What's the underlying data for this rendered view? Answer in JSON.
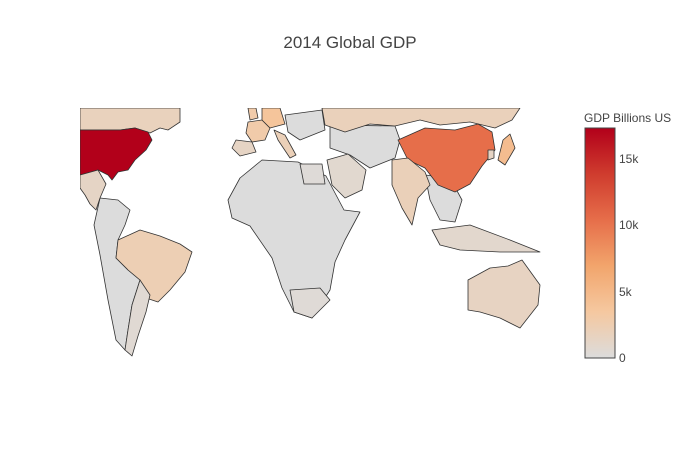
{
  "title": "2014 Global GDP",
  "colorbar": {
    "title": "GDP Billions US",
    "ticks": [
      "0",
      "5k",
      "10k",
      "15k"
    ],
    "tick_values": [
      0,
      5000,
      10000,
      15000
    ],
    "range": [
      0,
      17300
    ],
    "colors": [
      "#dcdcdc",
      "#f5c8a0",
      "#f2a56c",
      "#e66e4a",
      "#cf3c2e",
      "#b2001a"
    ]
  },
  "chart_data": {
    "type": "choropleth",
    "title": "2014 Global GDP",
    "colorbar_title": "GDP Billions US",
    "zrange": [
      0,
      17300
    ],
    "regions": [
      {
        "name": "United States",
        "value": 17300
      },
      {
        "name": "China",
        "value": 10400
      },
      {
        "name": "Japan",
        "value": 4600
      },
      {
        "name": "Germany",
        "value": 3800
      },
      {
        "name": "France",
        "value": 2900
      },
      {
        "name": "United Kingdom",
        "value": 2900
      },
      {
        "name": "Brazil",
        "value": 2300
      },
      {
        "name": "Italy",
        "value": 2100
      },
      {
        "name": "India",
        "value": 2000
      },
      {
        "name": "Russia",
        "value": 1900
      },
      {
        "name": "Canada",
        "value": 1800
      },
      {
        "name": "Australia",
        "value": 1500
      },
      {
        "name": "South Korea",
        "value": 1400
      },
      {
        "name": "Spain",
        "value": 1400
      },
      {
        "name": "Mexico",
        "value": 1300
      },
      {
        "name": "Indonesia",
        "value": 890
      },
      {
        "name": "Saudi Arabia",
        "value": 750
      },
      {
        "name": "Argentina",
        "value": 540
      },
      {
        "name": "South Africa",
        "value": 350
      },
      {
        "name": "Egypt",
        "value": 280
      }
    ]
  }
}
